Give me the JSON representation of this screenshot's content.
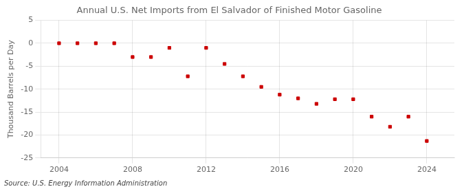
{
  "chart_data": {
    "type": "scatter",
    "title": "Annual U.S. Net Imports from El Salvador of Finished Motor Gasoline",
    "ylabel": "Thousand Barrels per Day",
    "annotations": [
      "Source: U.S. Energy Information Administration"
    ],
    "x": [
      2004,
      2005,
      2006,
      2007,
      2008,
      2009,
      2010,
      2011,
      2012,
      2013,
      2014,
      2015,
      2016,
      2017,
      2018,
      2019,
      2020,
      2021,
      2022,
      2023,
      2024
    ],
    "values": [
      0.0,
      0.0,
      0.0,
      0.0,
      -3.0,
      -3.0,
      -1.0,
      -7.2,
      -1.0,
      -4.5,
      -7.2,
      -9.5,
      -11.2,
      -12.0,
      -13.2,
      -12.2,
      -12.2,
      -16.0,
      -18.2,
      -16.0,
      -21.3
    ],
    "color": "#cc0000",
    "marker": "square",
    "xlim": [
      2003.0,
      2025.5
    ],
    "xticks": [
      2004,
      2008,
      2012,
      2016,
      2020,
      2024
    ],
    "ylim": [
      -25,
      5
    ],
    "yticks": [
      -25,
      -20,
      -15,
      -10,
      -5,
      0,
      5
    ],
    "grid": true
  }
}
